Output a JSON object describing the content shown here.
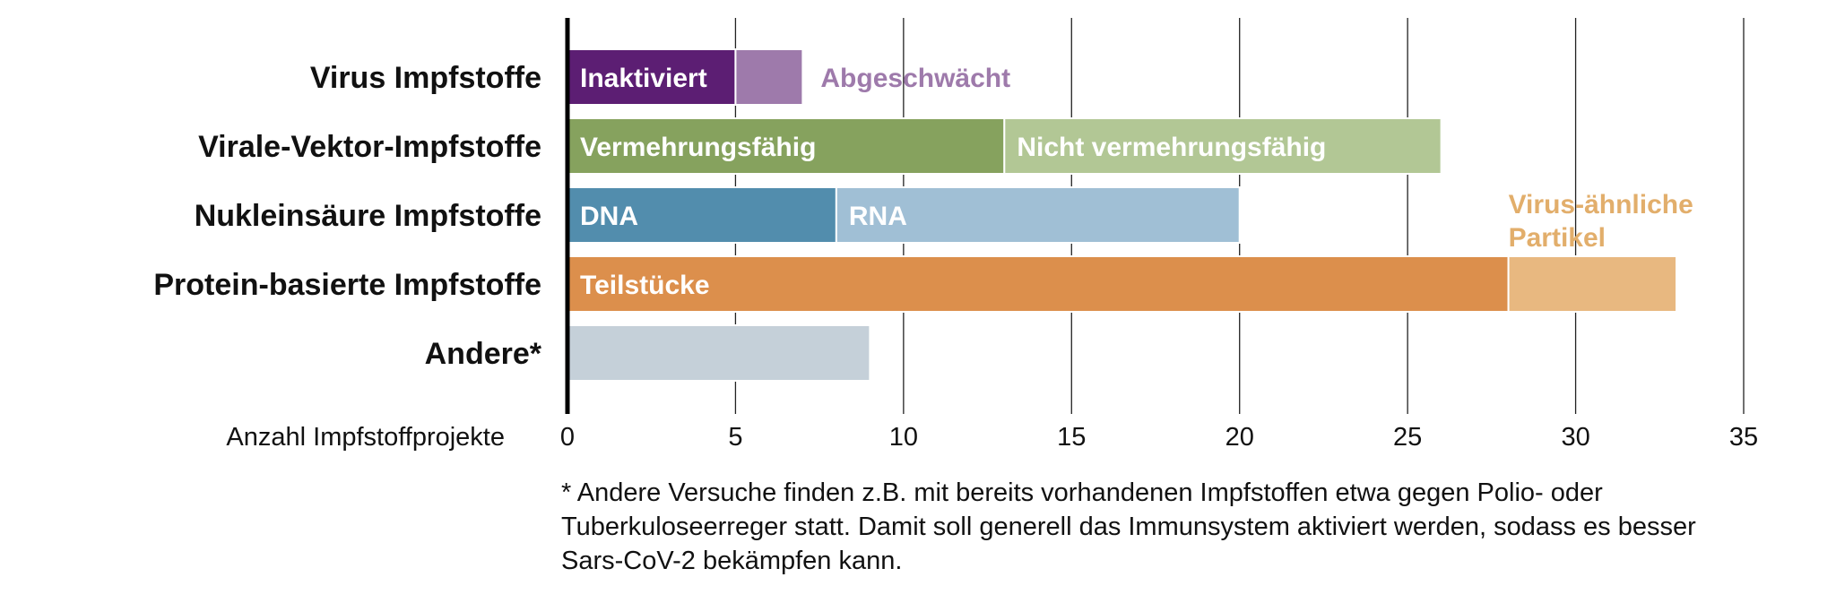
{
  "chart_data": {
    "type": "bar",
    "orientation": "horizontal",
    "stacked": true,
    "categories": [
      "Virus Impfstoffe",
      "Virale-Vektor-Impfstoffe",
      "Nukleinsäure Impfstoffe",
      "Protein-basierte Impfstoffe",
      "Andere*"
    ],
    "bars": [
      {
        "category": "Virus Impfstoffe",
        "segments": [
          {
            "label": "Inaktiviert",
            "value": 5,
            "color": "#5c1e73",
            "label_color": "#ffffff",
            "label_position": "inside"
          },
          {
            "label": "Abgeschwächt",
            "value": 2,
            "color": "#9e7aab",
            "label_color": "#9e7aab",
            "label_position": "outside"
          }
        ]
      },
      {
        "category": "Virale-Vektor-Impfstoffe",
        "segments": [
          {
            "label": "Vermehrungsfähig",
            "value": 13,
            "color": "#86a25e",
            "label_color": "#ffffff",
            "label_position": "inside"
          },
          {
            "label": "Nicht vermehrungsfähig",
            "value": 13,
            "color": "#b2c795",
            "label_color": "#ffffff",
            "label_position": "inside"
          }
        ]
      },
      {
        "category": "Nukleinsäure Impfstoffe",
        "segments": [
          {
            "label": "DNA",
            "value": 8,
            "color": "#528dad",
            "label_color": "#ffffff",
            "label_position": "inside"
          },
          {
            "label": "RNA",
            "value": 12,
            "color": "#a0bfd5",
            "label_color": "#ffffff",
            "label_position": "inside"
          }
        ]
      },
      {
        "category": "Protein-basierte Impfstoffe",
        "segments": [
          {
            "label": "Teilstücke",
            "value": 28,
            "color": "#dc8f4c",
            "label_color": "#ffffff",
            "label_position": "inside"
          },
          {
            "label": "Virus-ähnliche\nPartikel",
            "value": 5,
            "color": "#e8b880",
            "label_color": "#e2ae6b",
            "label_position": "above"
          }
        ]
      },
      {
        "category": "Andere*",
        "segments": [
          {
            "label": "",
            "value": 9,
            "color": "#c5d0d9",
            "label_color": "#ffffff",
            "label_position": "none"
          }
        ]
      }
    ],
    "xlim": [
      0,
      35
    ],
    "xticks": [
      0,
      5,
      10,
      15,
      20,
      25,
      30,
      35
    ],
    "xlabel": "Anzahl Impfstoffprojekte",
    "grid": true,
    "grid_color": "#222222"
  },
  "footnote": "* Andere Versuche finden z.B. mit bereits vorhandenen Impfstoffen etwa gegen Polio- oder Tuberkuloseerreger statt. Damit soll generell das Immunsystem aktiviert werden, sodass es besser Sars-CoV-2 bekämpfen kann."
}
